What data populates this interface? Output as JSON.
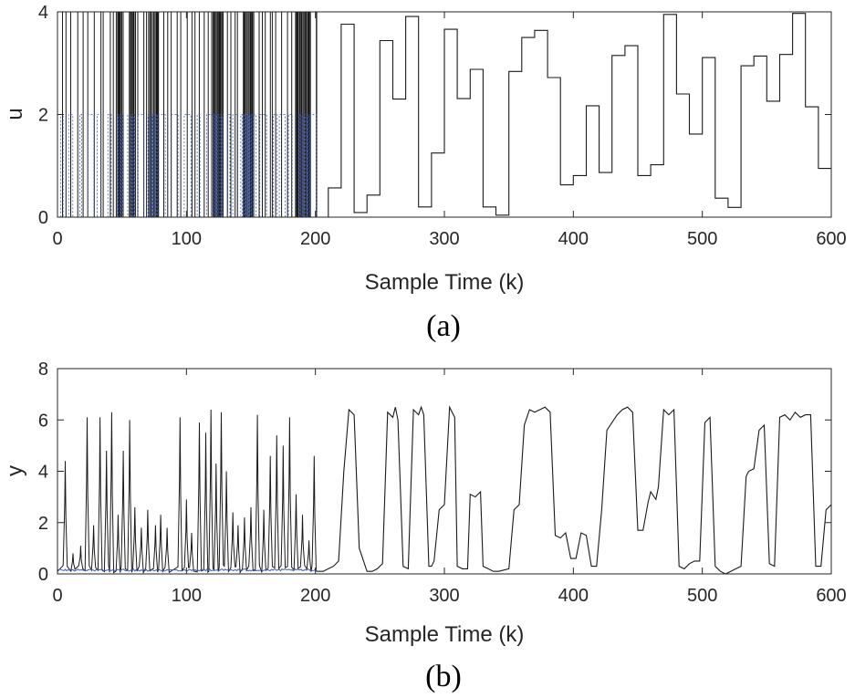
{
  "chart_data": [
    {
      "type": "line",
      "panel": "a",
      "caption": "(a)",
      "xlabel": "Sample Time (k)",
      "ylabel": "u",
      "xlim": [
        0,
        600
      ],
      "ylim": [
        0,
        4
      ],
      "xticks": [
        0,
        100,
        200,
        300,
        400,
        500,
        600
      ],
      "yticks": [
        0,
        2,
        4
      ],
      "grid": false,
      "colors": {
        "main": "#1a1a1a",
        "secondary": "#3a5bb5"
      },
      "series": [
        {
          "style": "step",
          "color": "#1a1a1a",
          "x": [
            201,
            210,
            220,
            230,
            240,
            250,
            260,
            270,
            280,
            290,
            300,
            310,
            320,
            330,
            340,
            350,
            360,
            370,
            380,
            390,
            400,
            410,
            420,
            430,
            440,
            450,
            460,
            470,
            480,
            490,
            500,
            510,
            520,
            530,
            540,
            550,
            560,
            570,
            580,
            590,
            600
          ],
          "y": [
            0,
            0.57,
            3.76,
            0.09,
            0.43,
            3.44,
            2.3,
            3.91,
            0.2,
            1.25,
            3.66,
            2.31,
            2.88,
            0.2,
            0.04,
            2.84,
            3.5,
            3.64,
            2.72,
            0.63,
            0.81,
            2.17,
            0.87,
            3.15,
            3.34,
            0.81,
            1.02,
            3.95,
            2.4,
            1.62,
            3.11,
            0.37,
            0.19,
            2.95,
            3.14,
            2.26,
            3.17,
            3.97,
            2.15,
            0.95,
            0.95
          ]
        }
      ],
      "bursts": [
        {
          "range": [
            0,
            201
          ],
          "levels": [
            0,
            4
          ],
          "color": "#1a1a1a",
          "dense_regions": [
            [
              44,
              50
            ],
            [
              55,
              60
            ],
            [
              70,
              78
            ],
            [
              118,
              128
            ],
            [
              142,
              152
            ],
            [
              183,
              196
            ]
          ]
        },
        {
          "range": [
            0,
            201
          ],
          "levels": [
            0,
            2
          ],
          "color": "#3a5bb5",
          "dense_regions": [
            [
              44,
              50
            ],
            [
              55,
              60
            ],
            [
              70,
              78
            ],
            [
              118,
              128
            ],
            [
              142,
              152
            ],
            [
              183,
              196
            ]
          ]
        }
      ]
    },
    {
      "type": "line",
      "panel": "b",
      "caption": "(b)",
      "xlabel": "Sample Time (k)",
      "ylabel": "y",
      "xlim": [
        0,
        600
      ],
      "ylim": [
        0,
        8
      ],
      "xticks": [
        0,
        100,
        200,
        300,
        400,
        500,
        600
      ],
      "yticks": [
        0,
        2,
        4,
        6,
        8
      ],
      "grid": false,
      "series": [
        {
          "color": "#1a1a1a",
          "x": [
            201,
            206,
            210,
            214,
            218,
            222,
            226,
            230,
            234,
            240,
            244,
            248,
            252,
            256,
            260,
            262,
            264,
            268,
            272,
            276,
            280,
            282,
            284,
            288,
            290,
            292,
            296,
            300,
            304,
            308,
            310,
            314,
            318,
            320,
            324,
            328,
            330,
            334,
            338,
            342,
            350,
            354,
            358,
            362,
            366,
            370,
            374,
            378,
            382,
            386,
            390,
            394,
            398,
            402,
            406,
            410,
            414,
            418,
            422,
            426,
            430,
            434,
            438,
            442,
            446,
            450,
            454,
            458,
            460,
            464,
            466,
            470,
            474,
            478,
            482,
            486,
            490,
            494,
            498,
            502,
            506,
            510,
            514,
            518,
            522,
            526,
            530,
            534,
            536,
            540,
            544,
            548,
            552,
            556,
            560,
            564,
            568,
            572,
            576,
            580,
            584,
            588,
            592,
            596,
            600
          ],
          "y": [
            0.1,
            0.1,
            0.2,
            0.3,
            0.5,
            4.0,
            6.4,
            6.2,
            1.0,
            0.1,
            0.1,
            0.2,
            0.4,
            6.3,
            6.1,
            6.5,
            6.0,
            0.3,
            0.2,
            6.4,
            6.2,
            6.5,
            6.2,
            0.3,
            0.3,
            0.5,
            2.5,
            2.7,
            6.5,
            6.1,
            0.3,
            0.2,
            0.2,
            3.1,
            3.0,
            3.2,
            0.3,
            0.2,
            0.1,
            0.1,
            0.2,
            2.5,
            2.7,
            5.8,
            6.4,
            6.3,
            6.4,
            6.5,
            6.3,
            1.5,
            1.4,
            1.6,
            0.6,
            0.6,
            1.6,
            1.5,
            0.3,
            0.3,
            2.5,
            5.6,
            5.9,
            6.2,
            6.4,
            6.5,
            6.3,
            1.7,
            1.7,
            2.8,
            3.2,
            2.9,
            3.4,
            6.4,
            6.2,
            6.4,
            0.3,
            0.2,
            0.4,
            0.5,
            0.5,
            5.9,
            6.1,
            0.3,
            0.1,
            0.0,
            0.1,
            0.2,
            0.3,
            3.8,
            4.0,
            4.1,
            5.6,
            5.8,
            0.4,
            0.3,
            6.1,
            6.2,
            6.0,
            6.3,
            6.1,
            6.2,
            6.2,
            0.3,
            0.3,
            2.5,
            2.7
          ]
        }
      ],
      "bursts": [
        {
          "range": [
            0,
            201
          ],
          "color": "#1a1a1a",
          "style": "spikes",
          "peaks": [
            [
              6,
              4.4
            ],
            [
              12,
              0.8
            ],
            [
              18,
              1.1
            ],
            [
              23,
              6.1
            ],
            [
              28,
              1.9
            ],
            [
              33,
              6.1
            ],
            [
              38,
              4.8
            ],
            [
              42,
              6.3
            ],
            [
              47,
              2.3
            ],
            [
              51,
              4.8
            ],
            [
              56,
              6.0
            ],
            [
              60,
              2.6
            ],
            [
              65,
              1.8
            ],
            [
              70,
              2.5
            ],
            [
              76,
              1.9
            ],
            [
              80,
              2.3
            ],
            [
              85,
              1.8
            ],
            [
              95,
              6.1
            ],
            [
              100,
              2.9
            ],
            [
              104,
              1.6
            ],
            [
              110,
              5.9
            ],
            [
              115,
              5.5
            ],
            [
              119,
              6.4
            ],
            [
              123,
              4.3
            ],
            [
              127,
              6.3
            ],
            [
              131,
              4.0
            ],
            [
              136,
              2.4
            ],
            [
              140,
              1.9
            ],
            [
              145,
              2.2
            ],
            [
              150,
              2.6
            ],
            [
              155,
              6.2
            ],
            [
              160,
              2.5
            ],
            [
              165,
              4.6
            ],
            [
              170,
              5.4
            ],
            [
              175,
              5.0
            ],
            [
              180,
              6.1
            ],
            [
              185,
              3.1
            ],
            [
              190,
              2.3
            ],
            [
              195,
              1.3
            ],
            [
              199,
              4.6
            ]
          ]
        },
        {
          "range": [
            0,
            201
          ],
          "color": "#3a5bb5",
          "style": "low",
          "level": 0.15
        }
      ]
    }
  ]
}
